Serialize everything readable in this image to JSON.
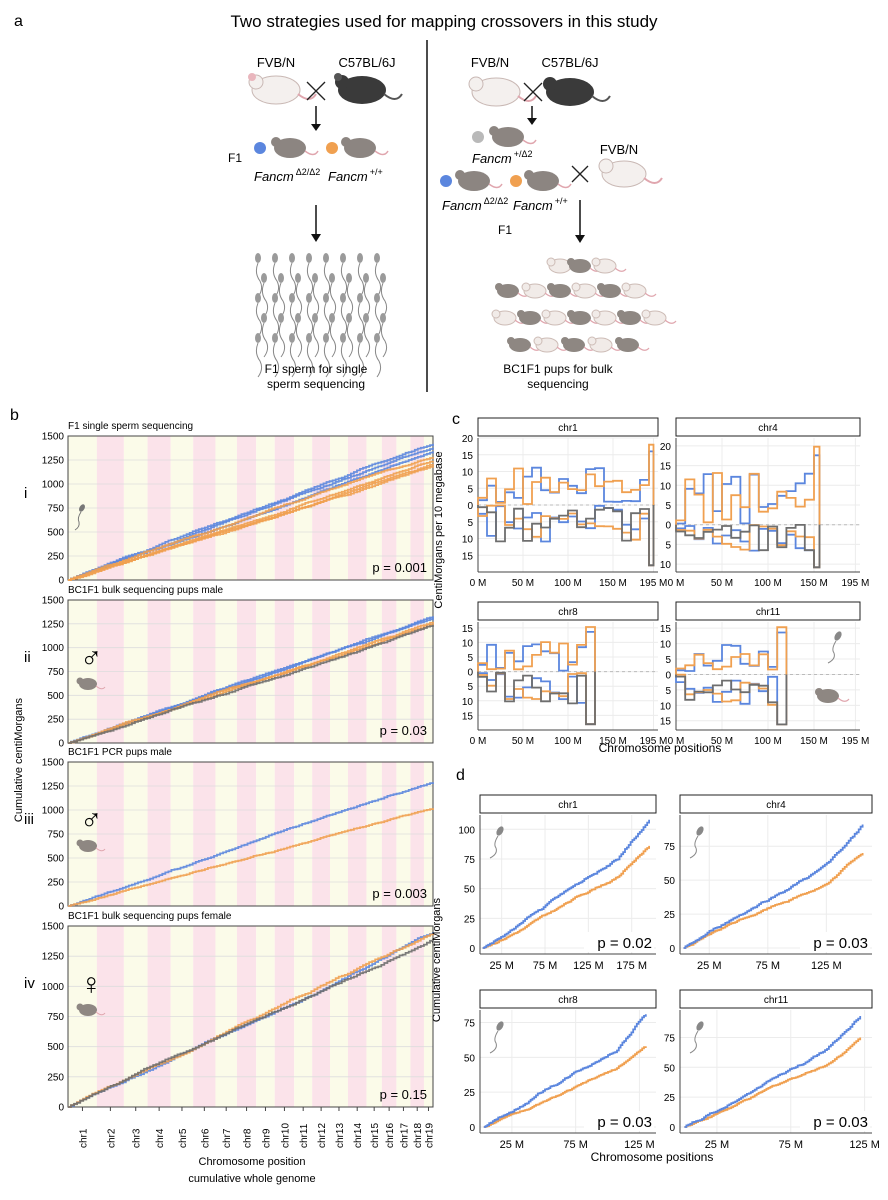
{
  "panel_a": {
    "letter": "a",
    "title": "Two strategies used for mapping crossovers in this study",
    "left": {
      "parent1": "FVB/N",
      "parent2": "C57BL/6J",
      "f1": "F1",
      "geno_mut": "Fancm",
      "geno_mut_sup": "Δ2/Δ2",
      "geno_wt": "Fancm",
      "geno_wt_sup": "+/+",
      "caption1": "F1 sperm for single",
      "caption2": "sperm sequencing"
    },
    "right": {
      "parent1": "FVB/N",
      "parent2": "C57BL/6J",
      "het": "Fancm",
      "het_sup": "+/Δ2",
      "backcross": "FVB/N",
      "geno_mut": "Fancm",
      "geno_mut_sup": "Δ2/Δ2",
      "geno_wt": "Fancm",
      "geno_wt_sup": "+/+",
      "f1": "F1",
      "caption1": "BC1F1 pups for bulk",
      "caption2": "sequencing"
    }
  },
  "colors": {
    "mutant": "#5b86de",
    "wildtype": "#f0a050",
    "het": "#6e6e6e",
    "pink": "#fbe3ea",
    "cream": "#fbfbe9"
  },
  "chart_data": [
    {
      "id": "b",
      "type": "line",
      "letter": "b",
      "ylabel": "Cumulative centiMorgans",
      "xlabel1": "Chromosome position",
      "xlabel2": "cumulative whole genome",
      "ylim": [
        0,
        1500
      ],
      "yticks": [
        "0",
        "250",
        "500",
        "750",
        "1000",
        "1250",
        "1500"
      ],
      "categories": [
        "chr1",
        "chr2",
        "chr3",
        "chr4",
        "chr5",
        "chr6",
        "chr7",
        "chr8",
        "chr9",
        "chr10",
        "chr11",
        "chr12",
        "chr13",
        "chr14",
        "chr15",
        "chr16",
        "chr17",
        "chr18",
        "chr19"
      ],
      "panels": [
        {
          "roman": "i",
          "title": "F1 single sperm sequencing",
          "p": "p = 0.001",
          "sex": "",
          "series": [
            {
              "group": "mutant",
              "final": [
                1420,
                1380,
                1340
              ]
            },
            {
              "group": "wildtype",
              "final": [
                1280,
                1240,
                1210,
                1190
              ]
            }
          ]
        },
        {
          "roman": "ii",
          "title": "BC1F1 bulk sequencing pups male",
          "p": "p = 0.03",
          "sex": "♂",
          "series": [
            {
              "group": "mutant",
              "final": [
                1330,
                1310
              ]
            },
            {
              "group": "wildtype",
              "final": [
                1270,
                1250
              ]
            },
            {
              "group": "het",
              "final": [
                1240
              ]
            }
          ]
        },
        {
          "roman": "iii",
          "title": "BC1F1 PCR pups male",
          "p": "p = 0.003",
          "sex": "♂",
          "series": [
            {
              "group": "mutant",
              "final": [
                1290
              ]
            },
            {
              "group": "wildtype",
              "final": [
                1020
              ]
            }
          ]
        },
        {
          "roman": "iv",
          "title": "BC1F1 bulk sequencing pups female",
          "p": "p = 0.15",
          "sex": "♀",
          "series": [
            {
              "group": "mutant",
              "final": [
                1450
              ]
            },
            {
              "group": "wildtype",
              "final": [
                1440
              ]
            },
            {
              "group": "het",
              "final": [
                1390
              ]
            }
          ]
        }
      ]
    },
    {
      "id": "c",
      "type": "line",
      "letter": "c",
      "ylabel": "CentiMorgans per 10 megabase",
      "xlabel": "Chromosome positions",
      "xticks": [
        "0 M",
        "50 M",
        "100 M",
        "150 M",
        "195 M"
      ],
      "facets": [
        {
          "name": "chr1",
          "len": 195,
          "ymax": 20,
          "ytop": [
            "20",
            "15",
            "10",
            "5",
            "0"
          ],
          "ybot": [
            "5",
            "10",
            "15"
          ],
          "ybotmax": 20
        },
        {
          "name": "chr4",
          "len": 156,
          "ymax": 22,
          "ytop": [
            "20",
            "15",
            "10",
            "5",
            "0"
          ],
          "ybot": [
            "5",
            "10"
          ],
          "ybotmax": 12
        },
        {
          "name": "chr8",
          "len": 130,
          "ymax": 17,
          "ytop": [
            "15",
            "10",
            "5",
            "0"
          ],
          "ybot": [
            "5",
            "10",
            "15"
          ],
          "ybotmax": 20
        },
        {
          "name": "chr11",
          "len": 122,
          "ymax": 17,
          "ytop": [
            "15",
            "10",
            "5",
            "0"
          ],
          "ybot": [
            "5",
            "10",
            "15"
          ],
          "ybotmax": 18
        }
      ]
    },
    {
      "id": "d",
      "type": "line",
      "letter": "d",
      "ylabel": "Cumulative centiMorgans",
      "xlabel": "Chromosome positions",
      "facets": [
        {
          "name": "chr1",
          "p": "p = 0.02",
          "xmax": 195,
          "xticks": [
            "25 M",
            "75 M",
            "125 M",
            "175 M"
          ],
          "ymax": 112,
          "yticks": [
            "0",
            "25",
            "50",
            "75",
            "100"
          ],
          "mutant_final": 108,
          "wildtype_final": 86
        },
        {
          "name": "chr4",
          "p": "p = 0.03",
          "xmax": 156,
          "xticks": [
            "25 M",
            "75 M",
            "125 M"
          ],
          "ymax": 98,
          "yticks": [
            "0",
            "25",
            "50",
            "75"
          ],
          "mutant_final": 91,
          "wildtype_final": 70
        },
        {
          "name": "chr8",
          "p": "p = 0.03",
          "xmax": 130,
          "xticks": [
            "25 M",
            "75 M",
            "125 M"
          ],
          "ymax": 84,
          "yticks": [
            "0",
            "25",
            "50",
            "75"
          ],
          "mutant_final": 81,
          "wildtype_final": 58
        },
        {
          "name": "chr11",
          "p": "p = 0.03",
          "xmax": 122,
          "xticks": [
            "25 M",
            "75 M",
            "125 M"
          ],
          "ymax": 98,
          "yticks": [
            "0",
            "25",
            "50",
            "75"
          ],
          "mutant_final": 93,
          "wildtype_final": 75
        }
      ]
    }
  ]
}
